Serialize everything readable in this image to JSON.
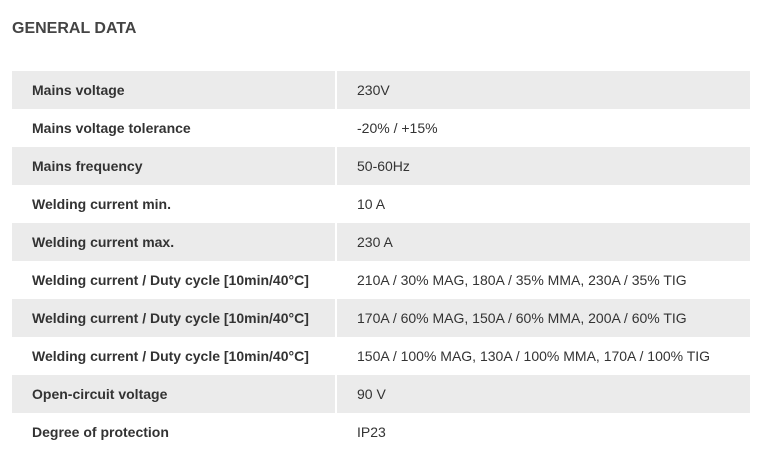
{
  "header": {
    "title": "GENERAL DATA"
  },
  "table": {
    "rows": [
      [
        "Mains voltage",
        "230V"
      ],
      [
        "Mains voltage tolerance",
        "-20% / +15%"
      ],
      [
        "Mains frequency",
        "50-60Hz"
      ],
      [
        "Welding current min.",
        "10 A"
      ],
      [
        "Welding current max.",
        "230 A"
      ],
      [
        "Welding current / Duty cycle [10min/40°C]",
        "210A / 30% MAG, 180A / 35% MMA, 230A / 35% TIG"
      ],
      [
        "Welding current / Duty cycle [10min/40°C]",
        "170A / 60% MAG, 150A / 60% MMA, 200A / 60% TIG"
      ],
      [
        "Welding current / Duty cycle [10min/40°C]",
        "150A / 100% MAG, 130A / 100% MMA, 170A / 100% TIG"
      ],
      [
        "Open-circuit voltage",
        "90 V"
      ],
      [
        "Degree of protection",
        "IP23"
      ]
    ]
  }
}
